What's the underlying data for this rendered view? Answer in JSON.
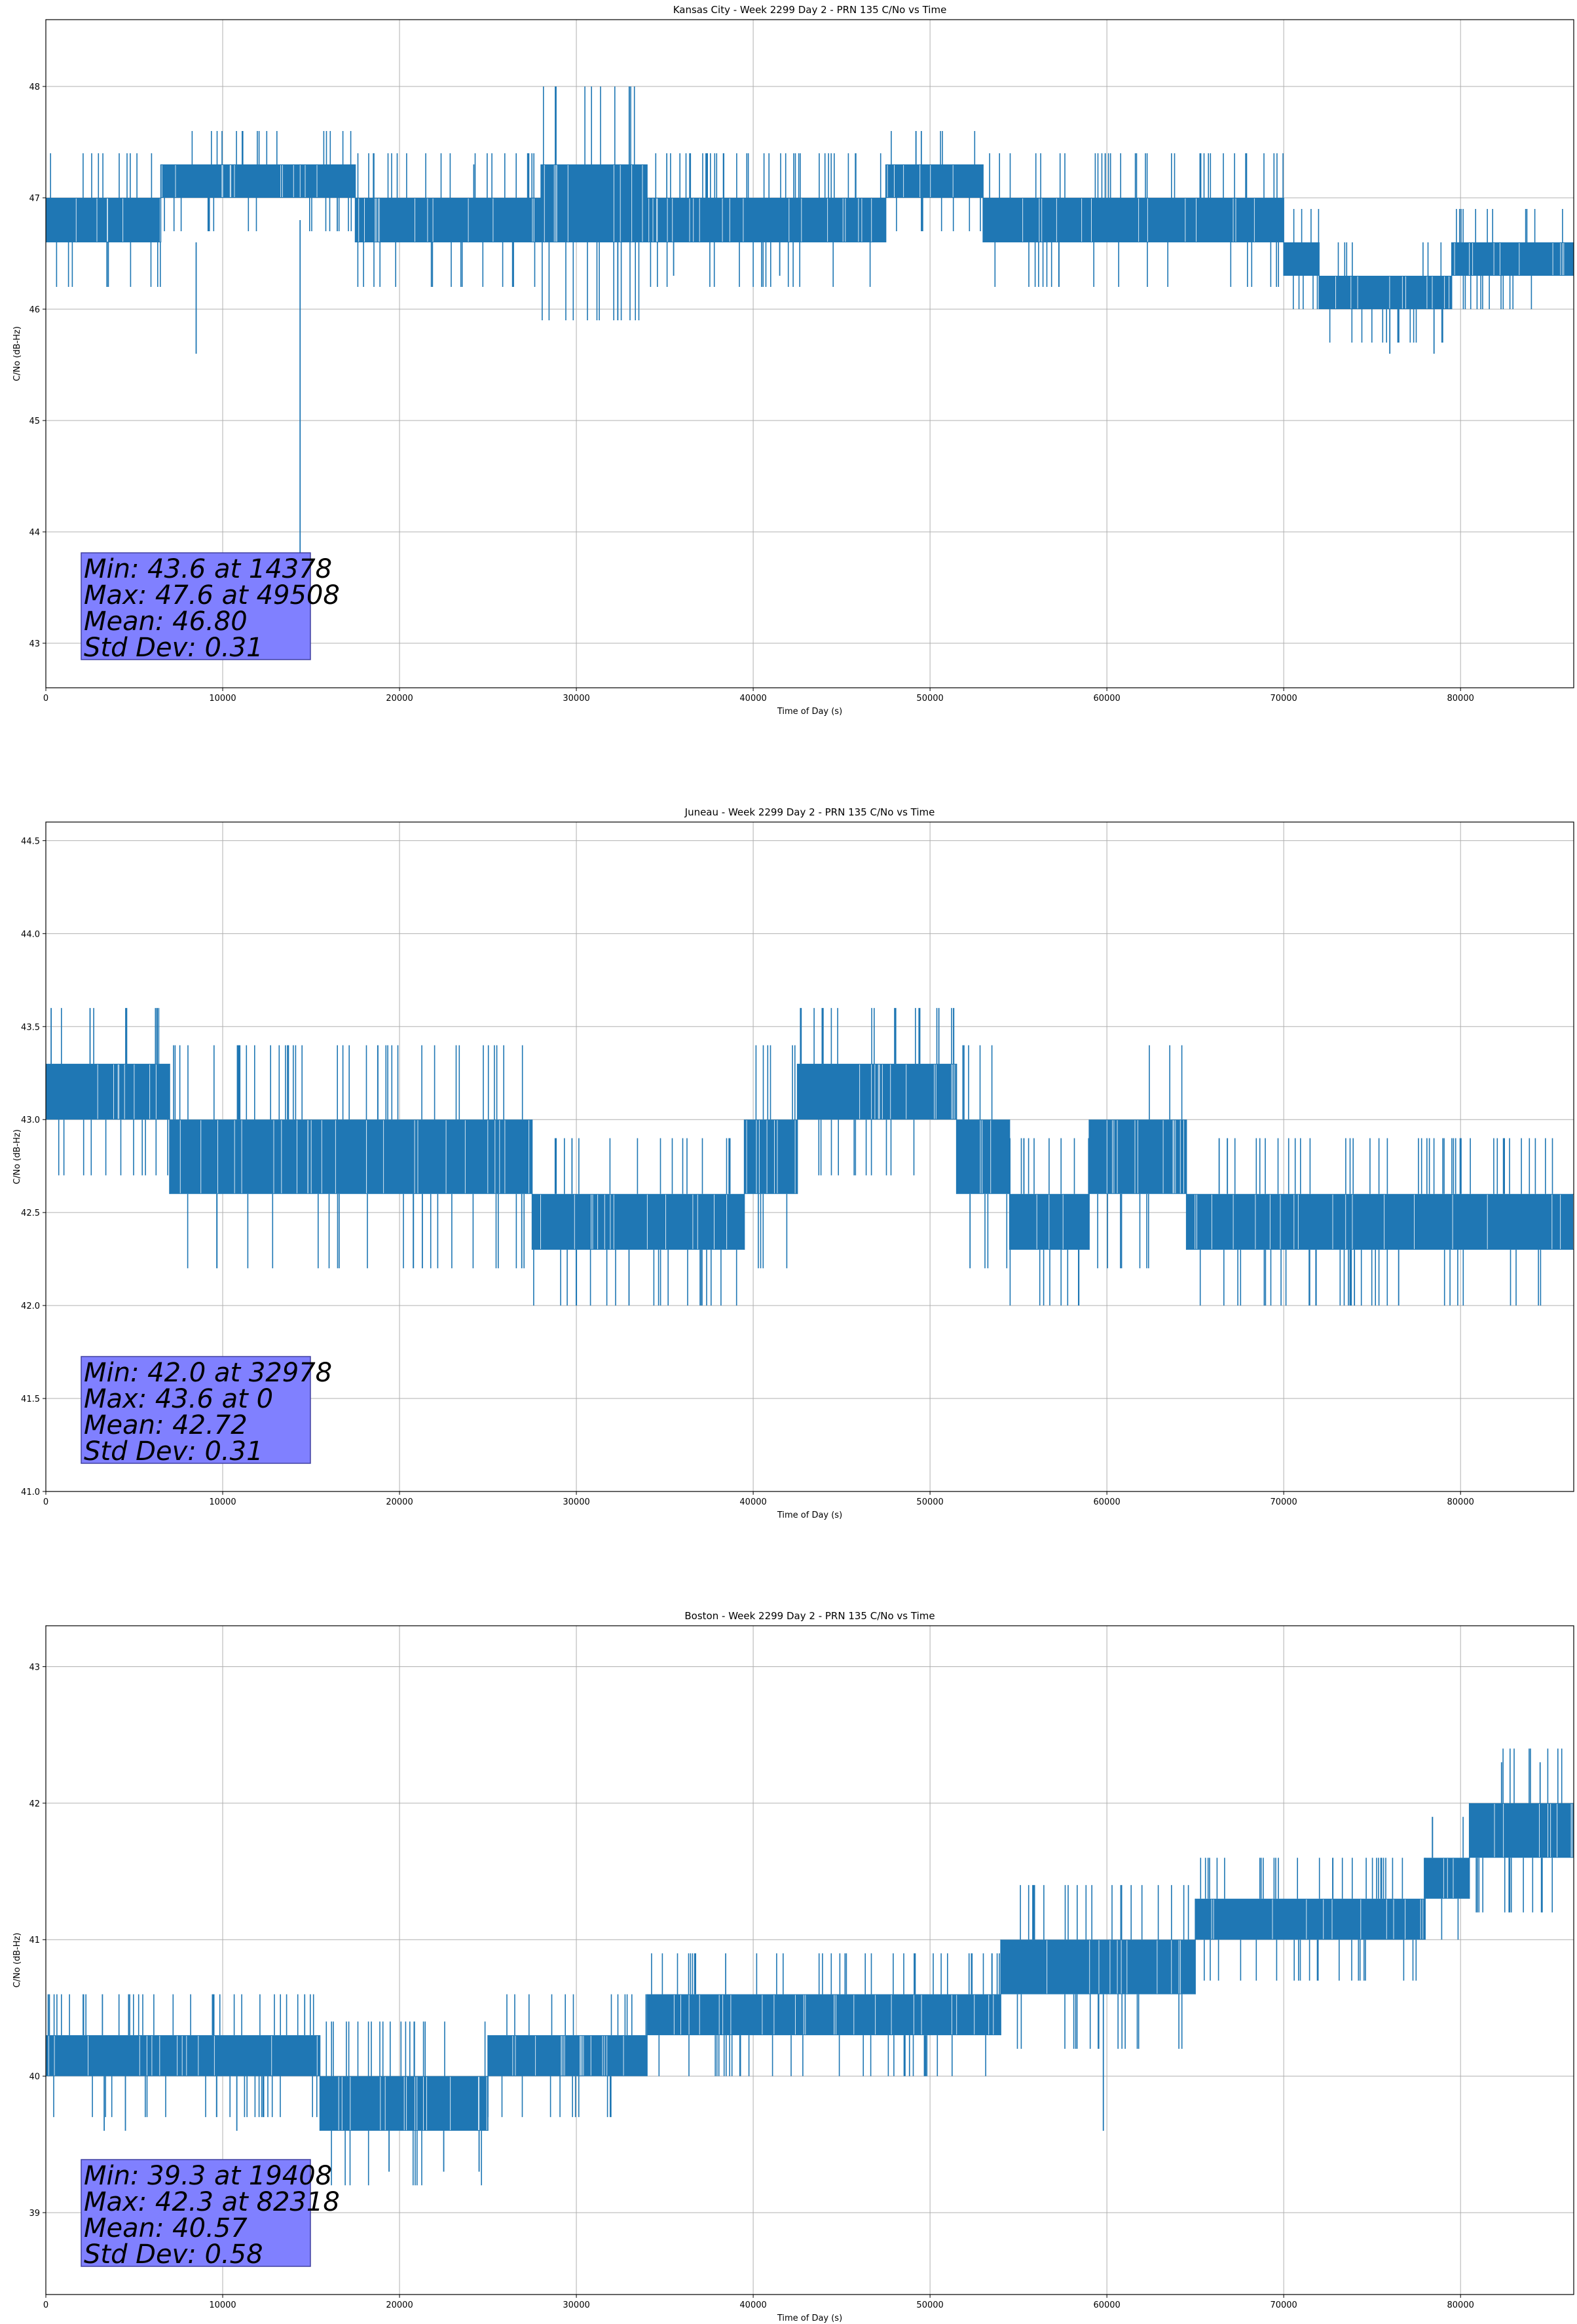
{
  "chart_data": [
    {
      "type": "line",
      "title": "Kansas City - Week 2299 Day 2 - PRN 135 C/No vs Time",
      "xlabel": "Time of Day (s)",
      "ylabel": "C/No (dB-Hz)",
      "xlim": [
        0,
        86400
      ],
      "ylim": [
        42.6,
        48.6
      ],
      "xticks": [
        0,
        10000,
        20000,
        30000,
        40000,
        50000,
        60000,
        70000,
        80000
      ],
      "yticks": [
        43,
        44,
        45,
        46,
        47,
        48
      ],
      "ytick_labels": [
        "43",
        "44",
        "45",
        "46",
        "47",
        "48"
      ],
      "grid": true,
      "line_color": "#1f77b4",
      "stats_box_color": "#8080ff",
      "stats": [
        "Min: 43.6 at 14378",
        "Max: 47.6 at 49508",
        "Mean: 46.80",
        "Std Dev: 0.31"
      ],
      "series": [
        {
          "band_segments": [
            {
              "x0": 0,
              "x1": 6500,
              "low": 46.6,
              "high": 47.0
            },
            {
              "x0": 6500,
              "x1": 17500,
              "low": 47.0,
              "high": 47.3
            },
            {
              "x0": 17500,
              "x1": 28000,
              "low": 46.6,
              "high": 47.0
            },
            {
              "x0": 28000,
              "x1": 34000,
              "low": 46.6,
              "high": 47.3
            },
            {
              "x0": 34000,
              "x1": 47500,
              "low": 46.6,
              "high": 47.0
            },
            {
              "x0": 47500,
              "x1": 53000,
              "low": 47.0,
              "high": 47.3
            },
            {
              "x0": 53000,
              "x1": 70000,
              "low": 46.6,
              "high": 47.0
            },
            {
              "x0": 70000,
              "x1": 72000,
              "low": 46.3,
              "high": 46.6
            },
            {
              "x0": 72000,
              "x1": 79500,
              "low": 46.0,
              "high": 46.3
            },
            {
              "x0": 79500,
              "x1": 86400,
              "low": 46.3,
              "high": 46.6
            }
          ],
          "spikes": [
            {
              "x": 8500,
              "y0": 46.6,
              "y1": 45.6
            },
            {
              "x": 14378,
              "y0": 46.8,
              "y1": 43.6
            },
            {
              "x": 24200,
              "y0": 47.0,
              "y1": 47.3
            },
            {
              "x": 35500,
              "y0": 46.6,
              "y1": 46.3
            },
            {
              "x": 41500,
              "y0": 46.6,
              "y1": 46.3
            },
            {
              "x": 49508,
              "y0": 47.3,
              "y1": 47.6
            },
            {
              "x": 76000,
              "y0": 46.0,
              "y1": 45.6
            },
            {
              "x": 78500,
              "y0": 46.0,
              "y1": 45.6
            }
          ]
        }
      ]
    },
    {
      "type": "line",
      "title": "Juneau - Week 2299 Day 2 - PRN 135 C/No vs Time",
      "xlabel": "Time of Day (s)",
      "ylabel": "C/No (dB-Hz)",
      "xlim": [
        0,
        86400
      ],
      "ylim": [
        41.0,
        44.6
      ],
      "xticks": [
        0,
        10000,
        20000,
        30000,
        40000,
        50000,
        60000,
        70000,
        80000
      ],
      "yticks": [
        41.0,
        41.5,
        42.0,
        42.5,
        43.0,
        43.5,
        44.0,
        44.5
      ],
      "ytick_labels": [
        "41.0",
        "41.5",
        "42.0",
        "42.5",
        "43.0",
        "43.5",
        "44.0",
        "44.5"
      ],
      "grid": true,
      "line_color": "#1f77b4",
      "stats_box_color": "#8080ff",
      "stats": [
        "Min: 42.0 at 32978",
        "Max: 43.6 at 0",
        "Mean: 42.72",
        "Std Dev: 0.31"
      ],
      "series": [
        {
          "band_segments": [
            {
              "x0": 0,
              "x1": 7000,
              "low": 43.0,
              "high": 43.3
            },
            {
              "x0": 7000,
              "x1": 27500,
              "low": 42.6,
              "high": 43.0
            },
            {
              "x0": 27500,
              "x1": 39500,
              "low": 42.3,
              "high": 42.6
            },
            {
              "x0": 39500,
              "x1": 42500,
              "low": 42.6,
              "high": 43.0
            },
            {
              "x0": 42500,
              "x1": 51500,
              "low": 43.0,
              "high": 43.3
            },
            {
              "x0": 51500,
              "x1": 54500,
              "low": 42.6,
              "high": 43.0
            },
            {
              "x0": 54500,
              "x1": 59000,
              "low": 42.3,
              "high": 42.6
            },
            {
              "x0": 59000,
              "x1": 64500,
              "low": 42.6,
              "high": 43.0
            },
            {
              "x0": 64500,
              "x1": 86400,
              "low": 42.3,
              "high": 42.6
            }
          ],
          "spikes": [
            {
              "x": 300,
              "y0": 43.3,
              "y1": 43.6
            },
            {
              "x": 2500,
              "y0": 43.3,
              "y1": 43.6
            },
            {
              "x": 6200,
              "y0": 43.3,
              "y1": 43.6
            },
            {
              "x": 32978,
              "y0": 42.3,
              "y1": 42.0
            },
            {
              "x": 37000,
              "y0": 42.3,
              "y1": 42.0
            },
            {
              "x": 48000,
              "y0": 43.3,
              "y1": 43.6
            },
            {
              "x": 50500,
              "y0": 43.3,
              "y1": 43.6
            },
            {
              "x": 74000,
              "y0": 42.3,
              "y1": 42.0
            },
            {
              "x": 76500,
              "y0": 42.3,
              "y1": 42.0
            }
          ]
        }
      ]
    },
    {
      "type": "line",
      "title": "Boston - Week 2299 Day 2 - PRN 135 C/No vs Time",
      "xlabel": "Time of Day (s)",
      "ylabel": "C/No (dB-Hz)",
      "xlim": [
        0,
        86400
      ],
      "ylim": [
        38.4,
        43.3
      ],
      "xticks": [
        0,
        10000,
        20000,
        30000,
        40000,
        50000,
        60000,
        70000,
        80000
      ],
      "yticks": [
        39,
        40,
        41,
        42,
        43
      ],
      "ytick_labels": [
        "39",
        "40",
        "41",
        "42",
        "43"
      ],
      "grid": true,
      "line_color": "#1f77b4",
      "stats_box_color": "#8080ff",
      "stats": [
        "Min: 39.3 at 19408",
        "Max: 42.3 at 82318",
        "Mean: 40.57",
        "Std Dev: 0.58"
      ],
      "series": [
        {
          "band_segments": [
            {
              "x0": 0,
              "x1": 15500,
              "low": 40.0,
              "high": 40.3
            },
            {
              "x0": 15500,
              "x1": 25000,
              "low": 39.6,
              "high": 40.0
            },
            {
              "x0": 25000,
              "x1": 34000,
              "low": 40.0,
              "high": 40.3
            },
            {
              "x0": 34000,
              "x1": 54000,
              "low": 40.3,
              "high": 40.6
            },
            {
              "x0": 54000,
              "x1": 65000,
              "low": 40.6,
              "high": 41.0
            },
            {
              "x0": 65000,
              "x1": 78000,
              "low": 41.0,
              "high": 41.3
            },
            {
              "x0": 78000,
              "x1": 80500,
              "low": 41.3,
              "high": 41.6
            },
            {
              "x0": 80500,
              "x1": 86400,
              "low": 41.6,
              "high": 42.0
            }
          ],
          "spikes": [
            {
              "x": 3200,
              "y0": 40.3,
              "y1": 40.6
            },
            {
              "x": 3300,
              "y0": 40.0,
              "y1": 39.6
            },
            {
              "x": 4500,
              "y0": 40.0,
              "y1": 39.6
            },
            {
              "x": 10800,
              "y0": 40.0,
              "y1": 39.6
            },
            {
              "x": 19408,
              "y0": 39.6,
              "y1": 39.3
            },
            {
              "x": 22500,
              "y0": 39.6,
              "y1": 39.3
            },
            {
              "x": 24500,
              "y0": 39.6,
              "y1": 39.3
            },
            {
              "x": 59800,
              "y0": 40.6,
              "y1": 39.6
            },
            {
              "x": 82318,
              "y0": 42.0,
              "y1": 42.3
            },
            {
              "x": 84500,
              "y0": 42.0,
              "y1": 42.3
            }
          ]
        }
      ]
    }
  ]
}
